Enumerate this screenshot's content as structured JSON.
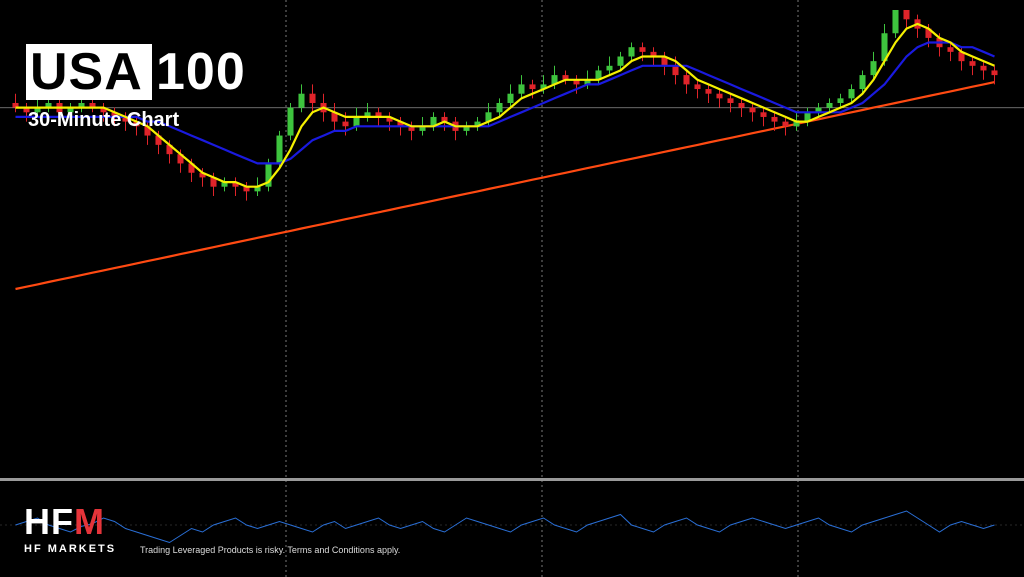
{
  "header": {
    "ticker_part1": "USA",
    "ticker_part2": "100",
    "subtitle": "30-Minute Chart"
  },
  "footer": {
    "brand_mark_left": "HF",
    "brand_mark_right": "M",
    "brand_name": "HF MARKETS",
    "disclaimer": "Trading Leveraged Products is risky. Terms and Conditions apply."
  },
  "colors": {
    "background": "#000000",
    "bull": "#3ec43e",
    "bear": "#e0242a",
    "ma_fast": "#f5f000",
    "ma_mid": "#1a1adf",
    "ma_slow": "#ff4a12",
    "oscillator": "#2a6fd6",
    "grid": "#cccccc",
    "separator": "#9a9a9a"
  },
  "chart_data": {
    "type": "candlestick",
    "title": "USA100",
    "subtitle": "30-Minute Chart",
    "grid": "vertical dotted",
    "horizontal_level": 14.5,
    "ylim": [
      0,
      100
    ],
    "candles": [
      [
        80,
        79,
        82,
        78
      ],
      [
        79,
        78,
        80,
        76
      ],
      [
        78,
        79,
        81,
        77
      ],
      [
        79,
        80,
        82,
        78
      ],
      [
        80,
        78,
        81,
        77
      ],
      [
        78,
        79,
        80,
        76
      ],
      [
        79,
        80,
        81,
        78
      ],
      [
        80,
        79,
        82,
        78
      ],
      [
        79,
        78,
        80,
        76
      ],
      [
        78,
        77,
        79,
        75
      ],
      [
        77,
        76,
        78,
        74
      ],
      [
        76,
        75,
        77,
        73
      ],
      [
        75,
        73,
        76,
        71
      ],
      [
        73,
        71,
        74,
        69
      ],
      [
        71,
        69,
        72,
        67
      ],
      [
        69,
        67,
        70,
        65
      ],
      [
        67,
        65,
        68,
        63
      ],
      [
        65,
        64,
        66,
        62
      ],
      [
        64,
        62,
        65,
        60
      ],
      [
        62,
        63,
        64,
        61
      ],
      [
        63,
        62,
        64,
        60
      ],
      [
        62,
        61,
        63,
        59
      ],
      [
        61,
        62,
        64,
        60
      ],
      [
        62,
        67,
        68,
        61
      ],
      [
        67,
        73,
        74,
        66
      ],
      [
        73,
        79,
        80,
        72
      ],
      [
        79,
        82,
        84,
        78
      ],
      [
        82,
        80,
        84,
        78
      ],
      [
        80,
        78,
        82,
        76
      ],
      [
        78,
        76,
        80,
        74
      ],
      [
        76,
        75,
        78,
        73
      ],
      [
        75,
        77,
        79,
        74
      ],
      [
        77,
        78,
        80,
        76
      ],
      [
        78,
        77,
        79,
        75
      ],
      [
        77,
        76,
        78,
        74
      ],
      [
        76,
        75,
        77,
        73
      ],
      [
        75,
        74,
        76,
        72
      ],
      [
        74,
        75,
        77,
        73
      ],
      [
        75,
        77,
        78,
        74
      ],
      [
        77,
        76,
        78,
        74
      ],
      [
        76,
        74,
        77,
        72
      ],
      [
        74,
        75,
        76,
        73
      ],
      [
        75,
        76,
        77,
        74
      ],
      [
        76,
        78,
        80,
        75
      ],
      [
        78,
        80,
        81,
        77
      ],
      [
        80,
        82,
        84,
        79
      ],
      [
        82,
        84,
        86,
        81
      ],
      [
        84,
        83,
        85,
        81
      ],
      [
        83,
        84,
        86,
        82
      ],
      [
        84,
        86,
        88,
        83
      ],
      [
        86,
        85,
        87,
        84
      ],
      [
        85,
        84,
        86,
        82
      ],
      [
        84,
        85,
        87,
        83
      ],
      [
        85,
        87,
        88,
        84
      ],
      [
        87,
        88,
        90,
        86
      ],
      [
        88,
        90,
        91,
        87
      ],
      [
        90,
        92,
        93,
        89
      ],
      [
        92,
        91,
        93,
        89
      ],
      [
        91,
        90,
        92,
        88
      ],
      [
        90,
        88,
        91,
        86
      ],
      [
        88,
        86,
        90,
        84
      ],
      [
        86,
        84,
        87,
        82
      ],
      [
        84,
        83,
        85,
        81
      ],
      [
        83,
        82,
        84,
        80
      ],
      [
        82,
        81,
        83,
        79
      ],
      [
        81,
        80,
        82,
        78
      ],
      [
        80,
        79,
        81,
        77
      ],
      [
        79,
        78,
        80,
        76
      ],
      [
        78,
        77,
        79,
        75
      ],
      [
        77,
        76,
        78,
        74
      ],
      [
        76,
        75,
        77,
        73
      ],
      [
        75,
        76,
        78,
        74
      ],
      [
        76,
        78,
        79,
        75
      ],
      [
        78,
        79,
        80,
        77
      ],
      [
        79,
        80,
        81,
        78
      ],
      [
        80,
        81,
        82,
        79
      ],
      [
        81,
        83,
        84,
        80
      ],
      [
        83,
        86,
        87,
        82
      ],
      [
        86,
        89,
        91,
        85
      ],
      [
        89,
        95,
        97,
        88
      ],
      [
        95,
        100,
        100,
        94
      ],
      [
        100,
        98,
        100,
        96
      ],
      [
        98,
        96,
        99,
        94
      ],
      [
        96,
        94,
        97,
        92
      ],
      [
        94,
        92,
        95,
        90
      ],
      [
        92,
        91,
        93,
        89
      ],
      [
        91,
        89,
        92,
        87
      ],
      [
        89,
        88,
        90,
        86
      ],
      [
        88,
        87,
        89,
        85
      ],
      [
        87,
        86,
        88,
        84
      ]
    ],
    "ma_fast": [
      79,
      79,
      79,
      79,
      79,
      79,
      79,
      79,
      79,
      78,
      77,
      76,
      75,
      73,
      71,
      69,
      67,
      65,
      64,
      63,
      63,
      62,
      62,
      63,
      66,
      70,
      75,
      78,
      79,
      78,
      77,
      77,
      77,
      77,
      77,
      76,
      75,
      75,
      75,
      76,
      75,
      75,
      75,
      76,
      77,
      79,
      81,
      82,
      83,
      84,
      85,
      85,
      85,
      85,
      86,
      87,
      89,
      90,
      90,
      90,
      89,
      87,
      85,
      84,
      83,
      82,
      81,
      80,
      79,
      78,
      77,
      76,
      76,
      77,
      78,
      79,
      80,
      82,
      85,
      89,
      93,
      96,
      97,
      96,
      94,
      93,
      91,
      90,
      89,
      88
    ],
    "ma_mid": [
      77,
      77,
      77,
      77,
      77,
      77,
      77,
      77,
      77,
      77,
      77,
      77,
      76,
      76,
      75,
      74,
      73,
      72,
      71,
      70,
      69,
      68,
      67,
      67,
      67,
      68,
      70,
      72,
      73,
      74,
      74,
      75,
      75,
      75,
      75,
      75,
      75,
      75,
      75,
      75,
      75,
      75,
      75,
      75,
      76,
      77,
      78,
      79,
      80,
      81,
      82,
      83,
      84,
      84,
      85,
      86,
      87,
      88,
      88,
      88,
      88,
      88,
      87,
      86,
      85,
      84,
      83,
      82,
      81,
      80,
      79,
      78,
      78,
      78,
      78,
      78,
      79,
      80,
      82,
      84,
      87,
      90,
      92,
      93,
      93,
      93,
      92,
      92,
      91,
      90
    ],
    "ma_slow": [
      40,
      40.5,
      41,
      41.5,
      42,
      42.5,
      43,
      43.5,
      44,
      44.5,
      45,
      45.5,
      46,
      46.5,
      47,
      47.5,
      48,
      48.5,
      49,
      49.5,
      50,
      50.5,
      51,
      51.5,
      52,
      52.5,
      53,
      53.5,
      54,
      54.5,
      55,
      55.5,
      56,
      56.5,
      57,
      57.5,
      58,
      58.5,
      59,
      59.5,
      60,
      60.5,
      61,
      61.5,
      62,
      62.5,
      63,
      63.5,
      64,
      64.5,
      65,
      65.5,
      66,
      66.5,
      67,
      67.5,
      68,
      68.5,
      69,
      69.5,
      70,
      70.5,
      71,
      71.5,
      72,
      72.5,
      73,
      73.5,
      74,
      74.5,
      75,
      75.5,
      76,
      76.5,
      77,
      77.5,
      78,
      78.5,
      79,
      79.5,
      80,
      80.5,
      81,
      81.5,
      82,
      82.5,
      83,
      83.5,
      84,
      84.5
    ],
    "oscillator": [
      50,
      55,
      60,
      50,
      45,
      40,
      48,
      52,
      60,
      55,
      45,
      40,
      35,
      30,
      25,
      35,
      45,
      40,
      50,
      55,
      60,
      50,
      45,
      50,
      55,
      50,
      45,
      40,
      50,
      55,
      45,
      50,
      55,
      60,
      50,
      45,
      50,
      55,
      45,
      40,
      50,
      60,
      55,
      50,
      45,
      40,
      50,
      55,
      60,
      50,
      45,
      40,
      50,
      55,
      60,
      65,
      50,
      45,
      40,
      50,
      55,
      60,
      50,
      45,
      40,
      50,
      55,
      60,
      55,
      50,
      45,
      50,
      55,
      60,
      50,
      45,
      40,
      50,
      55,
      60,
      65,
      70,
      60,
      50,
      40,
      50,
      55,
      50,
      45,
      50
    ]
  }
}
